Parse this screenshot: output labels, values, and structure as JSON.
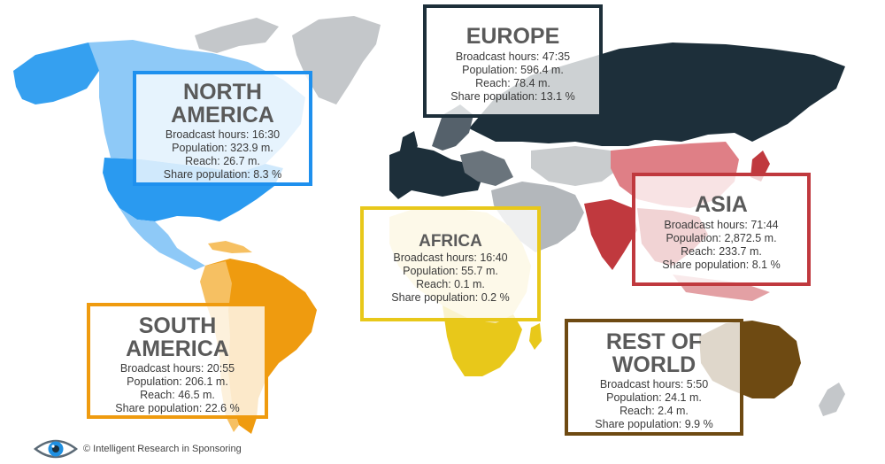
{
  "regions": {
    "north_america": {
      "title_line1": "NORTH",
      "title_line2": "AMERICA",
      "broadcast": "Broadcast hours: 16:30",
      "population": "Population: 323.9 m.",
      "reach": "Reach: 26.7 m.",
      "share": "Share population: 8.3 %",
      "color": "#2a9af0"
    },
    "europe": {
      "title": "EUROPE",
      "broadcast": "Broadcast hours: 47:35",
      "population": "Population: 596.4 m.",
      "reach": "Reach: 78.4 m.",
      "share": "Share population: 13.1 %",
      "color": "#1d2f3a"
    },
    "africa": {
      "title": "AFRICA",
      "broadcast": "Broadcast hours: 16:40",
      "population": "Population: 55.7 m.",
      "reach": "Reach: 0.1 m.",
      "share": "Share population: 0.2 %",
      "color": "#e8c81a"
    },
    "asia": {
      "title": "ASIA",
      "broadcast": "Broadcast hours: 71:44",
      "population": "Population: 2,872.5 m.",
      "reach": "Reach: 233.7 m.",
      "share": "Share population: 8.1 %",
      "color": "#c0393e"
    },
    "south_america": {
      "title_line1": "SOUTH",
      "title_line2": "AMERICA",
      "broadcast": "Broadcast hours: 20:55",
      "population": "Population: 206.1 m.",
      "reach": "Reach: 46.5 m.",
      "share": "Share population: 22.6 %",
      "color": "#ef9b0f"
    },
    "rest_of_world": {
      "title_line1": "REST OF",
      "title_line2": "WORLD",
      "broadcast": "Broadcast hours: 5:50",
      "population": "Population: 24.1 m.",
      "reach": "Reach: 2.4 m.",
      "share": "Share population: 9.9 %",
      "color": "#6e4a12"
    }
  },
  "footer": {
    "text": "© Intelligent Research in Sponsoring",
    "logo_icon": "eye-icon"
  }
}
